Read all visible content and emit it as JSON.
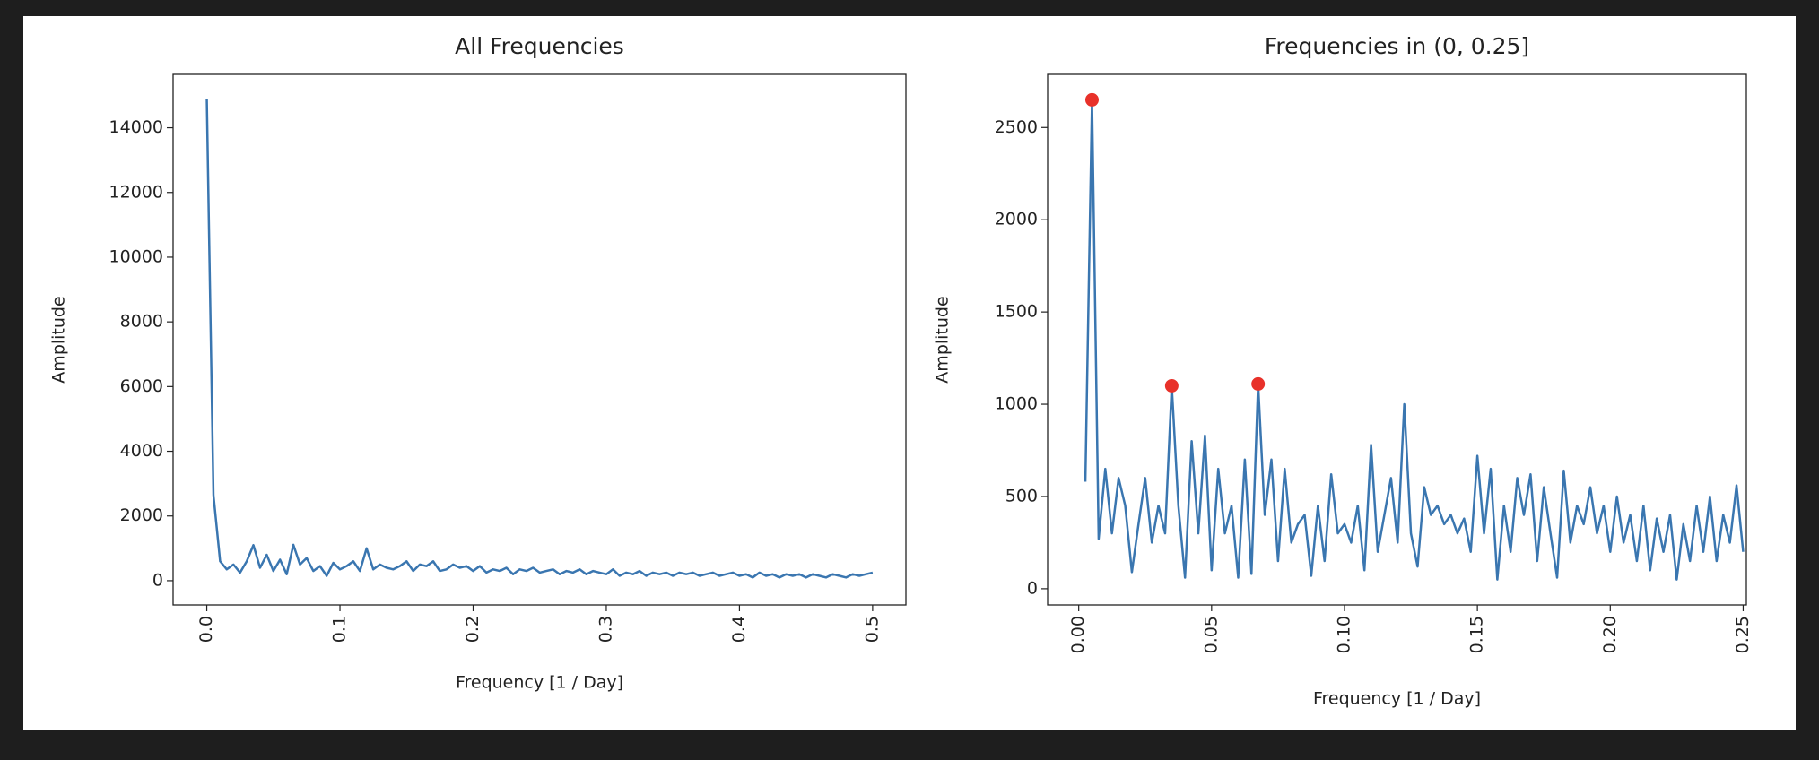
{
  "chart_data": [
    {
      "type": "line",
      "title": "All Frequencies",
      "xlabel": "Frequency [1 / Day]",
      "ylabel": "Amplitude",
      "color": "#3a76b0",
      "x": [
        0,
        0.005,
        0.01,
        0.015,
        0.02,
        0.025,
        0.03,
        0.035,
        0.04,
        0.045,
        0.05,
        0.055,
        0.06,
        0.065,
        0.07,
        0.075,
        0.08,
        0.085,
        0.09,
        0.095,
        0.1,
        0.105,
        0.11,
        0.115,
        0.12,
        0.125,
        0.13,
        0.135,
        0.14,
        0.145,
        0.15,
        0.155,
        0.16,
        0.165,
        0.17,
        0.175,
        0.18,
        0.185,
        0.19,
        0.195,
        0.2,
        0.205,
        0.21,
        0.215,
        0.22,
        0.225,
        0.23,
        0.235,
        0.24,
        0.245,
        0.25,
        0.255,
        0.26,
        0.265,
        0.27,
        0.275,
        0.28,
        0.285,
        0.29,
        0.295,
        0.3,
        0.305,
        0.31,
        0.315,
        0.32,
        0.325,
        0.33,
        0.335,
        0.34,
        0.345,
        0.35,
        0.355,
        0.36,
        0.365,
        0.37,
        0.375,
        0.38,
        0.385,
        0.39,
        0.395,
        0.4,
        0.405,
        0.41,
        0.415,
        0.42,
        0.425,
        0.43,
        0.435,
        0.44,
        0.445,
        0.45,
        0.455,
        0.46,
        0.465,
        0.47,
        0.475,
        0.48,
        0.485,
        0.49,
        0.495,
        0.5
      ],
      "values": [
        14900,
        2650,
        600,
        350,
        500,
        250,
        600,
        1100,
        400,
        800,
        300,
        650,
        200,
        1110,
        500,
        700,
        300,
        450,
        150,
        550,
        350,
        450,
        600,
        300,
        1000,
        350,
        500,
        400,
        350,
        450,
        600,
        300,
        500,
        450,
        600,
        300,
        350,
        500,
        400,
        450,
        300,
        450,
        250,
        350,
        300,
        400,
        200,
        350,
        300,
        400,
        250,
        300,
        350,
        200,
        300,
        250,
        350,
        200,
        300,
        250,
        200,
        350,
        150,
        250,
        200,
        300,
        150,
        250,
        200,
        250,
        150,
        250,
        200,
        250,
        150,
        200,
        250,
        150,
        200,
        250,
        150,
        200,
        100,
        250,
        150,
        200,
        100,
        200,
        150,
        200,
        100,
        200,
        150,
        100,
        200,
        150,
        100,
        200,
        150,
        200,
        250
      ],
      "xlim": [
        -0.0253,
        0.525
      ],
      "ylim": [
        -750,
        15650
      ],
      "xticks": [
        {
          "value": 0,
          "label": "0.0"
        },
        0.1,
        0.2,
        0.3,
        0.4,
        0.5
      ],
      "yticks": [
        0,
        2000,
        4000,
        6000,
        8000,
        10000,
        12000,
        14000
      ]
    },
    {
      "type": "line",
      "title": "Frequencies in (0, 0.25]",
      "xlabel": "Frequency [1 / Day]",
      "ylabel": "Amplitude",
      "color": "#3a76b0",
      "x": [
        0.0025,
        0.005,
        0.0075,
        0.01,
        0.0125,
        0.015,
        0.0175,
        0.02,
        0.0225,
        0.025,
        0.0275,
        0.03,
        0.0325,
        0.035,
        0.0375,
        0.04,
        0.0425,
        0.045,
        0.0475,
        0.05,
        0.0525,
        0.055,
        0.0575,
        0.06,
        0.0625,
        0.065,
        0.0675,
        0.07,
        0.0725,
        0.075,
        0.0775,
        0.08,
        0.0825,
        0.085,
        0.0875,
        0.09,
        0.0925,
        0.095,
        0.0975,
        0.1,
        0.1025,
        0.105,
        0.1075,
        0.11,
        0.1125,
        0.115,
        0.1175,
        0.12,
        0.1225,
        0.125,
        0.1275,
        0.13,
        0.1325,
        0.135,
        0.1375,
        0.14,
        0.1425,
        0.145,
        0.1475,
        0.15,
        0.1525,
        0.155,
        0.1575,
        0.16,
        0.1625,
        0.165,
        0.1675,
        0.17,
        0.1725,
        0.175,
        0.1775,
        0.18,
        0.1825,
        0.185,
        0.1875,
        0.19,
        0.1925,
        0.195,
        0.1975,
        0.2,
        0.2025,
        0.205,
        0.2075,
        0.21,
        0.2125,
        0.215,
        0.2175,
        0.22,
        0.2225,
        0.225,
        0.2275,
        0.23,
        0.2325,
        0.235,
        0.2375,
        0.24,
        0.2425,
        0.245,
        0.2475,
        0.25
      ],
      "values": [
        580,
        2650,
        270,
        650,
        300,
        600,
        450,
        90,
        350,
        600,
        250,
        450,
        300,
        1100,
        450,
        60,
        800,
        300,
        830,
        100,
        650,
        300,
        450,
        60,
        700,
        80,
        1110,
        400,
        700,
        150,
        650,
        250,
        350,
        400,
        70,
        450,
        150,
        620,
        300,
        350,
        250,
        450,
        100,
        780,
        200,
        400,
        600,
        250,
        1000,
        300,
        120,
        550,
        400,
        450,
        350,
        400,
        300,
        380,
        200,
        720,
        300,
        650,
        50,
        450,
        200,
        600,
        400,
        620,
        150,
        550,
        300,
        60,
        640,
        250,
        450,
        350,
        550,
        300,
        450,
        200,
        500,
        250,
        400,
        150,
        450,
        100,
        380,
        200,
        400,
        50,
        350,
        150,
        450,
        200,
        500,
        150,
        400,
        250,
        560,
        200
      ],
      "peaks": {
        "color": "#e8312a",
        "x": [
          0.005,
          0.035,
          0.0675
        ],
        "values": [
          2650,
          1100,
          1110
        ]
      },
      "xlim": [
        -0.0117,
        0.2512
      ],
      "ylim": [
        -88,
        2788
      ],
      "xticks": [
        {
          "value": 0,
          "label": "0.00"
        },
        0.05,
        {
          "value": 0.1,
          "label": "0.10"
        },
        0.15,
        {
          "value": 0.2,
          "label": "0.20"
        },
        0.25
      ],
      "yticks": [
        0,
        500,
        1000,
        1500,
        2000,
        2500
      ]
    }
  ]
}
